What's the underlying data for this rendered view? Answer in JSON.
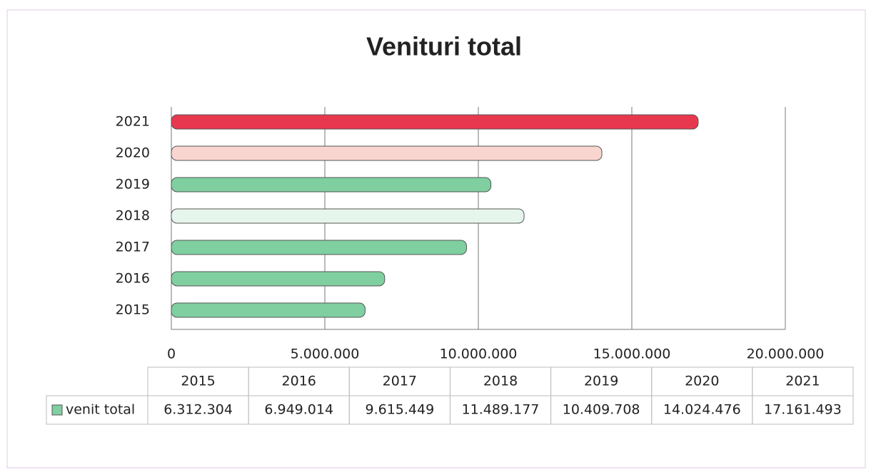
{
  "chart_data": {
    "type": "bar",
    "orientation": "horizontal",
    "title": "Venituri total",
    "categories": [
      "2015",
      "2016",
      "2017",
      "2018",
      "2019",
      "2020",
      "2021"
    ],
    "series": [
      {
        "name": "venit total",
        "color": "#7fcfa0",
        "values": [
          6312304,
          6949014,
          9615449,
          11489177,
          10409708,
          14024476,
          17161493
        ],
        "value_labels": [
          "6.312.304",
          "6.949.014",
          "9.615.449",
          "11.489.177",
          "10.409.708",
          "14.024.476",
          "17.161.493"
        ],
        "colors": [
          "#7fcfa0",
          "#7fcfa0",
          "#7fcfa0",
          "#e6f6ec",
          "#7fcfa0",
          "#f8d6cf",
          "#e8384f"
        ]
      }
    ],
    "xlim": [
      0,
      20000000
    ],
    "xticks": [
      0,
      {
        "value": 5000000,
        "label": "5.000.000"
      },
      {
        "value": 10000000,
        "label": "10.000.000"
      },
      {
        "value": 15000000,
        "label": "15.000.000"
      },
      {
        "value": 20000000,
        "label": "20.000.000"
      }
    ],
    "grid": true
  }
}
